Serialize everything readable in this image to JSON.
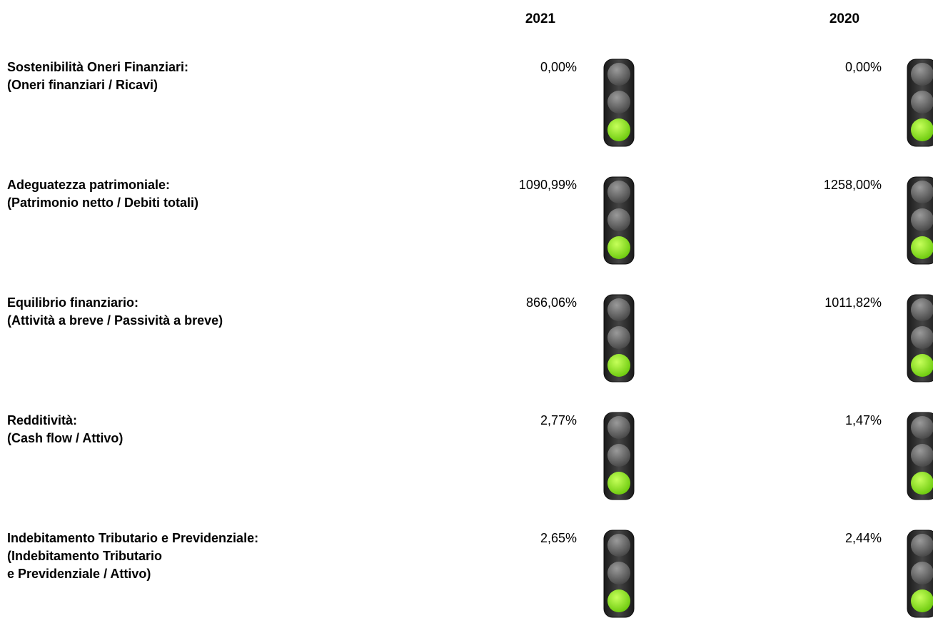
{
  "header": {
    "years": [
      "2021",
      "2020"
    ]
  },
  "rows": [
    {
      "label": [
        "Sostenibilità Oneri Finanziari:",
        "(Oneri finanziari / Ricavi)"
      ],
      "values": [
        "0,00%",
        "0,00%"
      ]
    },
    {
      "label": [
        "Adeguatezza patrimoniale:",
        "(Patrimonio netto / Debiti totali)"
      ],
      "values": [
        "1090,99%",
        "1258,00%"
      ]
    },
    {
      "label": [
        "Equilibrio finanziario:",
        "(Attività a breve / Passività a breve)"
      ],
      "values": [
        "866,06%",
        "1011,82%"
      ]
    },
    {
      "label": [
        "Redditività:",
        "(Cash flow / Attivo)"
      ],
      "values": [
        "2,77%",
        "1,47%"
      ]
    },
    {
      "label": [
        "Indebitamento Tributario e Previdenziale:",
        "(Indebitamento Tributario",
        "e Previdenziale / Attivo)"
      ],
      "values": [
        "2,65%",
        "2,44%"
      ]
    }
  ]
}
